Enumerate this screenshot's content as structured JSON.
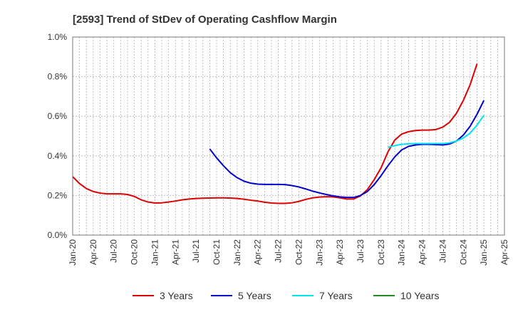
{
  "chart_data": {
    "type": "line",
    "title": "[2593]  Trend of StDev of Operating Cashflow Margin",
    "xlabel": "",
    "ylabel": "",
    "ylim": [
      0,
      1.0
    ],
    "y_ticks": [
      "0.0%",
      "0.2%",
      "0.4%",
      "0.6%",
      "0.8%",
      "1.0%"
    ],
    "y_tick_values": [
      0,
      0.2,
      0.4,
      0.6,
      0.8,
      1.0
    ],
    "x_ticks": [
      "Jan-20",
      "Apr-20",
      "Jul-20",
      "Oct-20",
      "Jan-21",
      "Apr-21",
      "Jul-21",
      "Oct-21",
      "Jan-22",
      "Apr-22",
      "Jul-22",
      "Oct-22",
      "Jan-23",
      "Apr-23",
      "Jul-23",
      "Oct-23",
      "Jan-24",
      "Apr-24",
      "Jul-24",
      "Oct-24",
      "Jan-25",
      "Apr-25"
    ],
    "x_range_months": [
      "2020-01",
      "2025-04"
    ],
    "grid": true,
    "legend_position": "bottom",
    "series": [
      {
        "name": "3 Years",
        "color": "#dd0000",
        "points": [
          [
            "2020-01",
            0.295
          ],
          [
            "2020-02",
            0.26
          ],
          [
            "2020-03",
            0.235
          ],
          [
            "2020-04",
            0.22
          ],
          [
            "2020-05",
            0.212
          ],
          [
            "2020-06",
            0.208
          ],
          [
            "2020-07",
            0.208
          ],
          [
            "2020-08",
            0.208
          ],
          [
            "2020-09",
            0.205
          ],
          [
            "2020-10",
            0.195
          ],
          [
            "2020-11",
            0.178
          ],
          [
            "2020-12",
            0.167
          ],
          [
            "2021-01",
            0.162
          ],
          [
            "2021-02",
            0.163
          ],
          [
            "2021-03",
            0.167
          ],
          [
            "2021-04",
            0.172
          ],
          [
            "2021-05",
            0.178
          ],
          [
            "2021-06",
            0.182
          ],
          [
            "2021-07",
            0.185
          ],
          [
            "2021-08",
            0.186
          ],
          [
            "2021-09",
            0.187
          ],
          [
            "2021-10",
            0.188
          ],
          [
            "2021-11",
            0.188
          ],
          [
            "2021-12",
            0.187
          ],
          [
            "2022-01",
            0.185
          ],
          [
            "2022-02",
            0.181
          ],
          [
            "2022-03",
            0.176
          ],
          [
            "2022-04",
            0.172
          ],
          [
            "2022-05",
            0.166
          ],
          [
            "2022-06",
            0.162
          ],
          [
            "2022-07",
            0.16
          ],
          [
            "2022-08",
            0.16
          ],
          [
            "2022-09",
            0.163
          ],
          [
            "2022-10",
            0.17
          ],
          [
            "2022-11",
            0.18
          ],
          [
            "2022-12",
            0.188
          ],
          [
            "2023-01",
            0.192
          ],
          [
            "2023-02",
            0.194
          ],
          [
            "2023-03",
            0.193
          ],
          [
            "2023-04",
            0.188
          ],
          [
            "2023-05",
            0.182
          ],
          [
            "2023-06",
            0.182
          ],
          [
            "2023-07",
            0.198
          ],
          [
            "2023-08",
            0.23
          ],
          [
            "2023-09",
            0.28
          ],
          [
            "2023-10",
            0.34
          ],
          [
            "2023-11",
            0.42
          ],
          [
            "2023-12",
            0.48
          ],
          [
            "2024-01",
            0.51
          ],
          [
            "2024-02",
            0.522
          ],
          [
            "2024-03",
            0.528
          ],
          [
            "2024-04",
            0.53
          ],
          [
            "2024-05",
            0.53
          ],
          [
            "2024-06",
            0.533
          ],
          [
            "2024-07",
            0.545
          ],
          [
            "2024-08",
            0.57
          ],
          [
            "2024-09",
            0.615
          ],
          [
            "2024-10",
            0.68
          ],
          [
            "2024-11",
            0.76
          ],
          [
            "2024-12",
            0.865
          ]
        ]
      },
      {
        "name": "5 Years",
        "color": "#0000cc",
        "points": [
          [
            "2021-09",
            0.435
          ],
          [
            "2021-10",
            0.39
          ],
          [
            "2021-11",
            0.35
          ],
          [
            "2021-12",
            0.315
          ],
          [
            "2022-01",
            0.29
          ],
          [
            "2022-02",
            0.272
          ],
          [
            "2022-03",
            0.262
          ],
          [
            "2022-04",
            0.257
          ],
          [
            "2022-05",
            0.256
          ],
          [
            "2022-06",
            0.256
          ],
          [
            "2022-07",
            0.256
          ],
          [
            "2022-08",
            0.255
          ],
          [
            "2022-09",
            0.25
          ],
          [
            "2022-10",
            0.243
          ],
          [
            "2022-11",
            0.233
          ],
          [
            "2022-12",
            0.222
          ],
          [
            "2023-01",
            0.213
          ],
          [
            "2023-02",
            0.205
          ],
          [
            "2023-03",
            0.198
          ],
          [
            "2023-04",
            0.193
          ],
          [
            "2023-05",
            0.19
          ],
          [
            "2023-06",
            0.19
          ],
          [
            "2023-07",
            0.2
          ],
          [
            "2023-08",
            0.22
          ],
          [
            "2023-09",
            0.255
          ],
          [
            "2023-10",
            0.3
          ],
          [
            "2023-11",
            0.35
          ],
          [
            "2023-12",
            0.395
          ],
          [
            "2024-01",
            0.43
          ],
          [
            "2024-02",
            0.448
          ],
          [
            "2024-03",
            0.455
          ],
          [
            "2024-04",
            0.458
          ],
          [
            "2024-05",
            0.458
          ],
          [
            "2024-06",
            0.457
          ],
          [
            "2024-07",
            0.455
          ],
          [
            "2024-08",
            0.46
          ],
          [
            "2024-09",
            0.475
          ],
          [
            "2024-10",
            0.505
          ],
          [
            "2024-11",
            0.55
          ],
          [
            "2024-12",
            0.61
          ],
          [
            "2025-01",
            0.68
          ]
        ]
      },
      {
        "name": "7 Years",
        "color": "#00e5ee",
        "points": [
          [
            "2023-11",
            0.443
          ],
          [
            "2023-12",
            0.452
          ],
          [
            "2024-01",
            0.458
          ],
          [
            "2024-02",
            0.461
          ],
          [
            "2024-03",
            0.462
          ],
          [
            "2024-04",
            0.462
          ],
          [
            "2024-05",
            0.462
          ],
          [
            "2024-06",
            0.462
          ],
          [
            "2024-07",
            0.462
          ],
          [
            "2024-08",
            0.466
          ],
          [
            "2024-09",
            0.475
          ],
          [
            "2024-10",
            0.49
          ],
          [
            "2024-11",
            0.515
          ],
          [
            "2024-12",
            0.555
          ],
          [
            "2025-01",
            0.605
          ]
        ]
      },
      {
        "name": "10 Years",
        "color": "#228b22",
        "points": []
      }
    ]
  }
}
